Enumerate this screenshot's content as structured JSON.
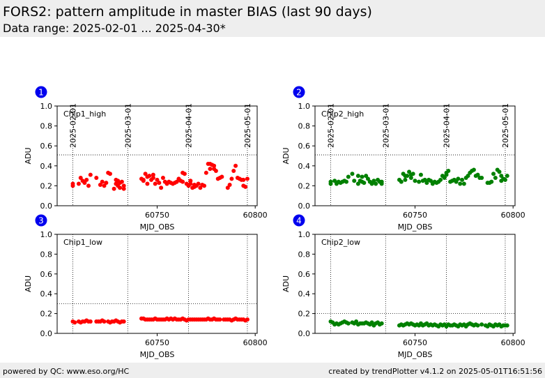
{
  "header": {
    "title": "FORS2: pattern amplitude in master BIAS (last 90 days)",
    "subtitle": "Data range: 2025-02-01 ... 2025-04-30*"
  },
  "footer": {
    "left": "powered by QC: www.eso.org/HC",
    "right": "created by trendPlotter v4.1.2 on 2025-05-01T16:51:56"
  },
  "chart_data": [
    {
      "type": "scatter",
      "badge": "1",
      "panel_label": "Chip1_high",
      "xlabel": "MJD_OBS",
      "ylabel": "ADU",
      "xlim": [
        60699,
        60801
      ],
      "ylim": [
        0,
        1.0
      ],
      "xticks": [
        60750,
        60800
      ],
      "yticks": [
        "0.0",
        "0.2",
        "0.4",
        "0.6",
        "0.8",
        "1.0"
      ],
      "threshold": 0.51,
      "date_markers": [
        {
          "mjd": 60707,
          "label": "2025-02-01"
        },
        {
          "mjd": 60735,
          "label": "2025-03-01"
        },
        {
          "mjd": 60766,
          "label": "2025-04-01"
        },
        {
          "mjd": 60796,
          "label": "2025-05-01"
        }
      ],
      "color": "#ff0000",
      "x": [
        60707,
        60707,
        60710,
        60711,
        60712,
        60713,
        60714,
        60715,
        60716,
        60719,
        60721,
        60722,
        60723,
        60724,
        60725,
        60726,
        60728,
        60729,
        60729,
        60730,
        60730,
        60731,
        60731,
        60732,
        60733,
        60733,
        60742,
        60743,
        60743,
        60744,
        60745,
        60745,
        60746,
        60747,
        60748,
        60748,
        60749,
        60750,
        60751,
        60752,
        60753,
        60754,
        60755,
        60756,
        60757,
        60758,
        60759,
        60760,
        60761,
        60762,
        60763,
        60763,
        60764,
        60765,
        60766,
        60767,
        60767,
        60768,
        60769,
        60769,
        60770,
        60771,
        60772,
        60773,
        60774,
        60775,
        60776,
        60777,
        60777,
        60778,
        60779,
        60779,
        60780,
        60781,
        60782,
        60783,
        60786,
        60787,
        60788,
        60789,
        60790,
        60791,
        60792,
        60793,
        60794,
        60794,
        60795,
        60796
      ],
      "y": [
        0.22,
        0.2,
        0.22,
        0.28,
        0.25,
        0.23,
        0.26,
        0.2,
        0.31,
        0.28,
        0.21,
        0.24,
        0.2,
        0.23,
        0.33,
        0.32,
        0.17,
        0.26,
        0.22,
        0.2,
        0.25,
        0.23,
        0.18,
        0.24,
        0.2,
        0.17,
        0.27,
        0.25,
        0.26,
        0.32,
        0.29,
        0.22,
        0.3,
        0.26,
        0.31,
        0.28,
        0.22,
        0.26,
        0.23,
        0.18,
        0.28,
        0.24,
        0.22,
        0.24,
        0.23,
        0.22,
        0.23,
        0.24,
        0.27,
        0.25,
        0.24,
        0.33,
        0.32,
        0.22,
        0.2,
        0.22,
        0.25,
        0.18,
        0.21,
        0.19,
        0.2,
        0.22,
        0.18,
        0.21,
        0.2,
        0.33,
        0.42,
        0.42,
        0.37,
        0.41,
        0.37,
        0.4,
        0.35,
        0.27,
        0.28,
        0.29,
        0.18,
        0.21,
        0.27,
        0.35,
        0.4,
        0.28,
        0.27,
        0.26,
        0.2,
        0.26,
        0.19,
        0.27
      ]
    },
    {
      "type": "scatter",
      "badge": "2",
      "panel_label": "Chip2_high",
      "xlabel": "MJD_OBS",
      "ylabel": "ADU",
      "xlim": [
        60699,
        60801
      ],
      "ylim": [
        0,
        1.0
      ],
      "xticks": [
        60750,
        60800
      ],
      "yticks": [
        "0.0",
        "0.2",
        "0.4",
        "0.6",
        "0.8",
        "1.0"
      ],
      "threshold": 0.51,
      "date_markers": [
        {
          "mjd": 60707,
          "label": "2025-02-01"
        },
        {
          "mjd": 60735,
          "label": "2025-03-01"
        },
        {
          "mjd": 60766,
          "label": "2025-04-01"
        },
        {
          "mjd": 60796,
          "label": "2025-05-01"
        }
      ],
      "color": "#008000",
      "x": [
        60707,
        60707,
        60709,
        60710,
        60711,
        60712,
        60713,
        60714,
        60715,
        60716,
        60718,
        60719,
        60721,
        60721,
        60722,
        60723,
        60723,
        60724,
        60725,
        60726,
        60727,
        60728,
        60729,
        60730,
        60731,
        60732,
        60733,
        60733,
        60742,
        60743,
        60744,
        60745,
        60745,
        60746,
        60747,
        60748,
        60748,
        60749,
        60750,
        60752,
        60753,
        60754,
        60755,
        60756,
        60757,
        60758,
        60759,
        60760,
        60761,
        60762,
        60763,
        60764,
        60765,
        60766,
        60766,
        60767,
        60768,
        60769,
        60770,
        60771,
        60772,
        60773,
        60774,
        60775,
        60776,
        60777,
        60778,
        60779,
        60780,
        60781,
        60782,
        60783,
        60784,
        60787,
        60788,
        60789,
        60790,
        60791,
        60792,
        60793,
        60794,
        60794,
        60795,
        60796,
        60797
      ],
      "y": [
        0.22,
        0.24,
        0.25,
        0.22,
        0.24,
        0.23,
        0.24,
        0.25,
        0.24,
        0.29,
        0.32,
        0.25,
        0.3,
        0.22,
        0.25,
        0.29,
        0.24,
        0.23,
        0.3,
        0.27,
        0.24,
        0.22,
        0.25,
        0.22,
        0.26,
        0.24,
        0.24,
        0.22,
        0.26,
        0.24,
        0.32,
        0.3,
        0.26,
        0.3,
        0.34,
        0.31,
        0.28,
        0.32,
        0.25,
        0.24,
        0.31,
        0.25,
        0.26,
        0.23,
        0.26,
        0.25,
        0.22,
        0.24,
        0.23,
        0.24,
        0.26,
        0.3,
        0.28,
        0.33,
        0.31,
        0.35,
        0.24,
        0.25,
        0.26,
        0.24,
        0.27,
        0.22,
        0.26,
        0.22,
        0.28,
        0.3,
        0.33,
        0.35,
        0.36,
        0.3,
        0.31,
        0.28,
        0.28,
        0.23,
        0.23,
        0.24,
        0.32,
        0.28,
        0.36,
        0.34,
        0.3,
        0.25,
        0.27,
        0.26,
        0.3
      ]
    },
    {
      "type": "scatter",
      "badge": "3",
      "panel_label": "Chip1_low",
      "xlabel": "MJD_OBS",
      "ylabel": "ADU",
      "xlim": [
        60699,
        60801
      ],
      "ylim": [
        0,
        1.0
      ],
      "xticks": [
        60750,
        60800
      ],
      "yticks": [
        "0.0",
        "0.2",
        "0.4",
        "0.6",
        "0.8",
        "1.0"
      ],
      "threshold": 0.3,
      "date_markers": [
        {
          "mjd": 60707,
          "label": "2025-02-01"
        },
        {
          "mjd": 60735,
          "label": "2025-03-01"
        },
        {
          "mjd": 60766,
          "label": "2025-04-01"
        },
        {
          "mjd": 60796,
          "label": "2025-05-01"
        }
      ],
      "color": "#ff0000",
      "x": [
        60707,
        60708,
        60710,
        60711,
        60712,
        60713,
        60714,
        60715,
        60716,
        60719,
        60720,
        60721,
        60722,
        60723,
        60725,
        60726,
        60727,
        60728,
        60729,
        60730,
        60731,
        60732,
        60733,
        60742,
        60743,
        60744,
        60745,
        60746,
        60747,
        60748,
        60749,
        60750,
        60751,
        60752,
        60753,
        60754,
        60755,
        60756,
        60757,
        60758,
        60759,
        60760,
        60761,
        60762,
        60763,
        60764,
        60765,
        60766,
        60767,
        60768,
        60769,
        60770,
        60771,
        60772,
        60773,
        60774,
        60775,
        60776,
        60777,
        60778,
        60779,
        60780,
        60781,
        60782,
        60784,
        60785,
        60786,
        60787,
        60788,
        60789,
        60790,
        60791,
        60792,
        60793,
        60794,
        60795,
        60796
      ],
      "y": [
        0.12,
        0.11,
        0.12,
        0.11,
        0.12,
        0.12,
        0.13,
        0.12,
        0.12,
        0.12,
        0.12,
        0.12,
        0.13,
        0.12,
        0.12,
        0.11,
        0.12,
        0.12,
        0.13,
        0.12,
        0.11,
        0.12,
        0.12,
        0.15,
        0.15,
        0.14,
        0.14,
        0.14,
        0.14,
        0.14,
        0.15,
        0.14,
        0.14,
        0.14,
        0.14,
        0.14,
        0.15,
        0.14,
        0.15,
        0.14,
        0.15,
        0.14,
        0.14,
        0.14,
        0.15,
        0.14,
        0.13,
        0.14,
        0.14,
        0.14,
        0.14,
        0.14,
        0.14,
        0.14,
        0.14,
        0.14,
        0.14,
        0.15,
        0.14,
        0.14,
        0.15,
        0.14,
        0.14,
        0.14,
        0.14,
        0.14,
        0.14,
        0.14,
        0.13,
        0.14,
        0.15,
        0.14,
        0.14,
        0.14,
        0.14,
        0.13,
        0.14
      ]
    },
    {
      "type": "scatter",
      "badge": "4",
      "panel_label": "Chip2_low",
      "xlabel": "MJD_OBS",
      "ylabel": "ADU",
      "xlim": [
        60699,
        60801
      ],
      "ylim": [
        0,
        1.0
      ],
      "xticks": [
        60750,
        60800
      ],
      "yticks": [
        "0.0",
        "0.2",
        "0.4",
        "0.6",
        "0.8",
        "1.0"
      ],
      "threshold": 0.2,
      "date_markers": [
        {
          "mjd": 60707,
          "label": "2025-02-01"
        },
        {
          "mjd": 60735,
          "label": "2025-03-01"
        },
        {
          "mjd": 60766,
          "label": "2025-04-01"
        },
        {
          "mjd": 60796,
          "label": "2025-05-01"
        }
      ],
      "color": "#008000",
      "x": [
        60707,
        60708,
        60709,
        60710,
        60711,
        60712,
        60713,
        60714,
        60715,
        60716,
        60718,
        60719,
        60720,
        60721,
        60722,
        60723,
        60724,
        60725,
        60726,
        60727,
        60728,
        60729,
        60730,
        60731,
        60732,
        60733,
        60742,
        60743,
        60744,
        60745,
        60746,
        60747,
        60748,
        60749,
        60750,
        60751,
        60752,
        60753,
        60754,
        60755,
        60756,
        60757,
        60758,
        60759,
        60760,
        60761,
        60762,
        60763,
        60764,
        60765,
        60766,
        60767,
        60768,
        60769,
        60770,
        60771,
        60772,
        60773,
        60774,
        60775,
        60776,
        60777,
        60778,
        60779,
        60780,
        60781,
        60782,
        60784,
        60786,
        60787,
        60788,
        60789,
        60790,
        60791,
        60792,
        60793,
        60794,
        60795,
        60796,
        60797
      ],
      "y": [
        0.12,
        0.11,
        0.09,
        0.1,
        0.09,
        0.1,
        0.11,
        0.12,
        0.11,
        0.1,
        0.11,
        0.1,
        0.12,
        0.09,
        0.1,
        0.1,
        0.1,
        0.11,
        0.1,
        0.09,
        0.11,
        0.08,
        0.1,
        0.11,
        0.09,
        0.1,
        0.08,
        0.09,
        0.08,
        0.09,
        0.1,
        0.09,
        0.1,
        0.09,
        0.08,
        0.09,
        0.08,
        0.1,
        0.08,
        0.09,
        0.1,
        0.08,
        0.09,
        0.08,
        0.09,
        0.08,
        0.07,
        0.09,
        0.08,
        0.09,
        0.07,
        0.09,
        0.08,
        0.08,
        0.09,
        0.08,
        0.07,
        0.09,
        0.08,
        0.09,
        0.07,
        0.09,
        0.1,
        0.09,
        0.08,
        0.09,
        0.08,
        0.09,
        0.08,
        0.07,
        0.09,
        0.08,
        0.07,
        0.09,
        0.08,
        0.09,
        0.07,
        0.08,
        0.08,
        0.08
      ]
    }
  ]
}
